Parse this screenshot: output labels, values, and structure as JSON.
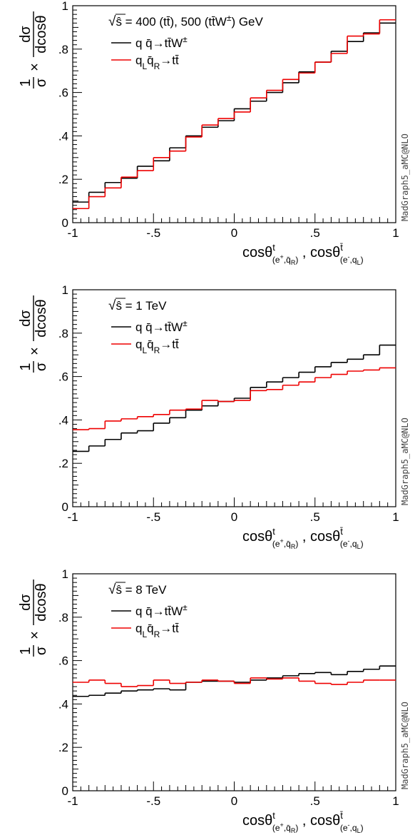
{
  "panels": [
    {
      "legend_header": "√ŝ = 400 (tt̄), 500 (tt̄W±) GeV",
      "header_parts": {
        "root": "√",
        "var": "ŝ",
        "rest": " = 400 (tt̄), 500 (tt̄W",
        "sup": "±",
        "tail": ") GeV"
      }
    },
    {
      "legend_header": "√ŝ = 1 TeV",
      "header_parts": {
        "root": "√",
        "var": "ŝ",
        "rest": " = 1 TeV",
        "sup": "",
        "tail": ""
      }
    },
    {
      "legend_header": "√ŝ = 8 TeV",
      "header_parts": {
        "root": "√",
        "var": "ŝ",
        "rest": " = 8 TeV",
        "sup": "",
        "tail": ""
      }
    }
  ],
  "legend_entries": [
    {
      "text": "q q̄→tt̄W±",
      "color": "#000000"
    },
    {
      "text": "qLq̄R→tt̄",
      "color": "#ee0000"
    }
  ],
  "y_axis_label": "1/σ × dσ/dcosθ",
  "x_axis_label": "cosθt(e+,q̄R) , cosθt̄(e-,qL)",
  "watermark": "MadGraph5_aMC@NLO",
  "colors": {
    "ttW": "#000000",
    "tt": "#ee0000"
  },
  "chart_data": [
    {
      "type": "line",
      "step": true,
      "title": "√ŝ = 400 (tt̄), 500 (tt̄W±) GeV",
      "xlim": [
        -1,
        1
      ],
      "ylim": [
        0,
        1
      ],
      "x_ticks": [
        -1,
        -0.5,
        0,
        0.5,
        1
      ],
      "y_ticks": [
        0,
        0.2,
        0.4,
        0.6,
        0.8,
        1
      ],
      "bin_edges": [
        -1,
        -0.9,
        -0.8,
        -0.7,
        -0.6,
        -0.5,
        -0.4,
        -0.3,
        -0.2,
        -0.1,
        0,
        0.1,
        0.2,
        0.3,
        0.4,
        0.5,
        0.6,
        0.7,
        0.8,
        0.9,
        1
      ],
      "series": [
        {
          "name": "q q̄→tt̄W±",
          "color": "#000000",
          "values": [
            0.095,
            0.14,
            0.185,
            0.205,
            0.26,
            0.285,
            0.345,
            0.4,
            0.44,
            0.47,
            0.525,
            0.56,
            0.6,
            0.645,
            0.695,
            0.74,
            0.79,
            0.835,
            0.875,
            0.92
          ]
        },
        {
          "name": "qLq̄R→tt̄",
          "color": "#ee0000",
          "values": [
            0.065,
            0.12,
            0.16,
            0.21,
            0.24,
            0.3,
            0.33,
            0.395,
            0.45,
            0.48,
            0.51,
            0.575,
            0.61,
            0.66,
            0.69,
            0.74,
            0.78,
            0.86,
            0.87,
            0.935
          ]
        }
      ]
    },
    {
      "type": "line",
      "step": true,
      "title": "√ŝ = 1 TeV",
      "xlim": [
        -1,
        1
      ],
      "ylim": [
        0,
        1
      ],
      "x_ticks": [
        -1,
        -0.5,
        0,
        0.5,
        1
      ],
      "y_ticks": [
        0,
        0.2,
        0.4,
        0.6,
        0.8,
        1
      ],
      "bin_edges": [
        -1,
        -0.9,
        -0.8,
        -0.7,
        -0.6,
        -0.5,
        -0.4,
        -0.3,
        -0.2,
        -0.1,
        0,
        0.1,
        0.2,
        0.3,
        0.4,
        0.5,
        0.6,
        0.7,
        0.8,
        0.9,
        1
      ],
      "series": [
        {
          "name": "q q̄→tt̄W±",
          "color": "#000000",
          "values": [
            0.255,
            0.28,
            0.31,
            0.34,
            0.35,
            0.385,
            0.41,
            0.445,
            0.465,
            0.485,
            0.5,
            0.55,
            0.575,
            0.595,
            0.62,
            0.645,
            0.665,
            0.68,
            0.7,
            0.745
          ]
        },
        {
          "name": "qLq̄R→tt̄",
          "color": "#ee0000",
          "values": [
            0.355,
            0.36,
            0.395,
            0.405,
            0.415,
            0.425,
            0.445,
            0.45,
            0.49,
            0.485,
            0.49,
            0.535,
            0.54,
            0.56,
            0.575,
            0.595,
            0.61,
            0.625,
            0.63,
            0.64
          ]
        }
      ]
    },
    {
      "type": "line",
      "step": true,
      "title": "√ŝ = 8 TeV",
      "xlim": [
        -1,
        1
      ],
      "ylim": [
        0,
        1
      ],
      "x_ticks": [
        -1,
        -0.5,
        0,
        0.5,
        1
      ],
      "y_ticks": [
        0,
        0.2,
        0.4,
        0.6,
        0.8,
        1
      ],
      "bin_edges": [
        -1,
        -0.9,
        -0.8,
        -0.7,
        -0.6,
        -0.5,
        -0.4,
        -0.3,
        -0.2,
        -0.1,
        0,
        0.1,
        0.2,
        0.3,
        0.4,
        0.5,
        0.6,
        0.7,
        0.8,
        0.9,
        1
      ],
      "series": [
        {
          "name": "q q̄→tt̄W±",
          "color": "#000000",
          "values": [
            0.435,
            0.44,
            0.45,
            0.46,
            0.465,
            0.47,
            0.465,
            0.5,
            0.505,
            0.505,
            0.5,
            0.51,
            0.52,
            0.53,
            0.54,
            0.545,
            0.535,
            0.55,
            0.56,
            0.575
          ]
        },
        {
          "name": "qLq̄R→tt̄",
          "color": "#ee0000",
          "values": [
            0.5,
            0.51,
            0.495,
            0.48,
            0.485,
            0.51,
            0.495,
            0.5,
            0.51,
            0.505,
            0.495,
            0.52,
            0.515,
            0.52,
            0.505,
            0.495,
            0.49,
            0.5,
            0.51,
            0.51
          ]
        }
      ]
    }
  ]
}
